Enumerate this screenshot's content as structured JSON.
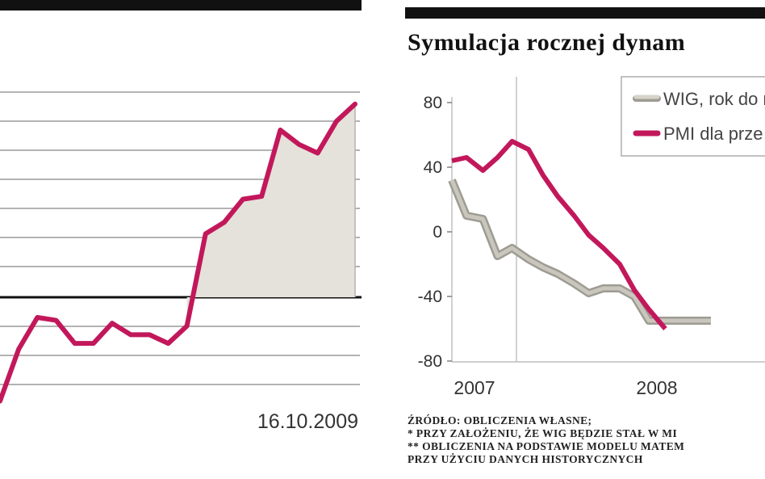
{
  "left_chart": {
    "date_label": "16.10.2009"
  },
  "right_chart": {
    "title": "Symulacja rocznej dynam",
    "legend": [
      {
        "label": "WIG, rok do r",
        "color": "#c9c7bd"
      },
      {
        "label": "PMI dla prze",
        "color": "#c2185b"
      }
    ],
    "footnotes": [
      "ŹRÓDŁO: OBLICZENIA WŁASNE;",
      "* PRZY ZAŁOŻENIU, ŻE WIG BĘDZIE STAŁ W MI",
      "** OBLICZENIA NA PODSTAWIE MODELU MATEM",
      "PRZY UŻYCIU DANYCH HISTORYCZNYCH"
    ]
  },
  "chart_data": [
    {
      "type": "area",
      "title": "",
      "xlabel": "16.10.2009",
      "ylabel": "",
      "grid": true,
      "series": [
        {
          "color": "#c2185b",
          "values": [
            -3.6,
            -1.8,
            -0.7,
            -0.8,
            -1.6,
            -1.6,
            -0.9,
            -1.3,
            -1.3,
            -1.6,
            -1.0,
            2.2,
            2.6,
            3.4,
            3.5,
            5.8,
            5.3,
            5.0,
            6.1,
            6.7
          ]
        }
      ]
    },
    {
      "type": "line",
      "title": "Symulacja rocznej dynam",
      "ylim": [
        -80,
        80
      ],
      "yticks": [
        80,
        40,
        0,
        -40,
        -80
      ],
      "xticks": [
        "2007",
        "2008"
      ],
      "grid": false,
      "legend_position": "top-right",
      "series": [
        {
          "name": "WIG, rok do r",
          "color": "#c9c7bd",
          "x": [
            2007.0,
            2007.08,
            2007.17,
            2007.25,
            2007.33,
            2007.42,
            2007.5,
            2007.58,
            2007.67,
            2007.75,
            2007.83,
            2007.92,
            2008.0,
            2008.08,
            2008.17,
            2008.25,
            2008.33,
            2008.42
          ],
          "values": [
            32,
            10,
            8,
            -15,
            -10,
            -17,
            -22,
            -26,
            -32,
            -38,
            -35,
            -35,
            -40,
            -55,
            -55,
            -55,
            -55,
            -55
          ]
        },
        {
          "name": "PMI dla prze",
          "color": "#c2185b",
          "x": [
            2007.0,
            2007.08,
            2007.17,
            2007.25,
            2007.33,
            2007.42,
            2007.5,
            2007.58,
            2007.67,
            2007.75,
            2007.83,
            2007.92,
            2008.0,
            2008.08,
            2008.17
          ],
          "values": [
            44,
            46,
            38,
            46,
            56,
            51,
            35,
            22,
            10,
            -2,
            -10,
            -20,
            -36,
            -48,
            -60
          ]
        }
      ]
    }
  ]
}
